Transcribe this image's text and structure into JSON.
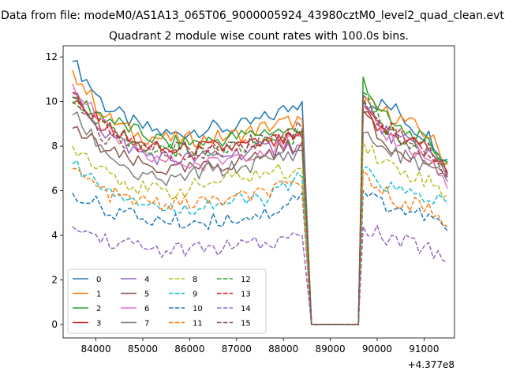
{
  "figure": {
    "suptitle": "Data from file: modeM0/AS1A13_065T06_9000005924_43980cztM0_level2_quad_clean.evt",
    "offset_text": "+4.377e8"
  },
  "chart_data": {
    "type": "line",
    "title": "Quadrant 2 module wise count rates with 100.0s bins.",
    "xlabel": "",
    "ylabel": "",
    "x_offset": 437700000,
    "xlim": [
      83300,
      91650
    ],
    "ylim": [
      -0.6,
      12.5
    ],
    "x_ticks": [
      84000,
      85000,
      86000,
      87000,
      88000,
      89000,
      90000,
      91000
    ],
    "x_tick_labels": [
      "84000",
      "85000",
      "86000",
      "87000",
      "88000",
      "89000",
      "90000",
      "91000"
    ],
    "y_ticks": [
      0,
      2,
      4,
      6,
      8,
      10,
      12
    ],
    "y_tick_labels": [
      "0",
      "2",
      "4",
      "6",
      "8",
      "10",
      "12"
    ],
    "grid": false,
    "legend_position": "lower-left",
    "legend_columns": 4,
    "segments": [
      {
        "x_start": 83500,
        "x_end": 88400
      },
      {
        "x_start": 88600,
        "x_end": 89600
      },
      {
        "x_start": 89700,
        "x_end": 91450
      }
    ],
    "series": [
      {
        "name": "0",
        "color": "#1f77b4",
        "dash": "solid",
        "a": [
          11.8,
          9.8,
          8.9,
          8.5,
          8.8,
          8.8,
          9.3,
          10.0
        ],
        "gap": 0,
        "b": [
          10.0,
          9.9,
          9.6,
          8.8,
          8.4,
          7.4
        ]
      },
      {
        "name": "1",
        "color": "#ff7f0e",
        "dash": "solid",
        "a": [
          11.4,
          9.3,
          8.5,
          8.3,
          8.3,
          8.5,
          8.9,
          9.2
        ],
        "gap": 0,
        "b": [
          10.0,
          9.6,
          9.3,
          8.9,
          8.4,
          7.2
        ]
      },
      {
        "name": "2",
        "color": "#2ca02c",
        "dash": "solid",
        "a": [
          10.2,
          9.3,
          8.6,
          8.1,
          8.2,
          8.4,
          8.7,
          8.6
        ],
        "gap": 0,
        "b": [
          11.1,
          9.5,
          8.8,
          8.5,
          8.0,
          7.3
        ]
      },
      {
        "name": "3",
        "color": "#d62728",
        "dash": "solid",
        "a": [
          9.9,
          8.9,
          8.0,
          7.8,
          7.9,
          8.0,
          8.1,
          8.4
        ],
        "gap": 0,
        "b": [
          9.5,
          8.7,
          8.4,
          8.2,
          7.9,
          6.7
        ]
      },
      {
        "name": "4",
        "color": "#9467bd",
        "dash": "solid",
        "a": [
          10.4,
          8.6,
          7.7,
          7.4,
          7.5,
          7.7,
          7.9,
          8.0
        ],
        "gap": 0,
        "b": [
          9.8,
          8.8,
          8.3,
          8.0,
          7.7,
          6.6
        ]
      },
      {
        "name": "5",
        "color": "#8c564b",
        "dash": "solid",
        "a": [
          8.8,
          7.8,
          7.2,
          6.9,
          7.0,
          7.3,
          7.7,
          8.2
        ],
        "gap": 0,
        "b": [
          9.6,
          8.2,
          7.9,
          7.6,
          7.2,
          6.6
        ]
      },
      {
        "name": "6",
        "color": "#e377c2",
        "dash": "solid",
        "a": [
          10.8,
          8.8,
          7.6,
          7.3,
          7.1,
          7.6,
          7.9,
          8.4
        ],
        "gap": 0,
        "b": [
          9.8,
          8.6,
          8.3,
          7.8,
          7.4,
          6.1
        ]
      },
      {
        "name": "7",
        "color": "#7f7f7f",
        "dash": "solid",
        "a": [
          9.4,
          7.8,
          6.6,
          6.4,
          6.9,
          7.0,
          7.4,
          7.8
        ],
        "gap": 0,
        "b": [
          8.6,
          8.0,
          7.6,
          7.4,
          7.0,
          6.4
        ]
      },
      {
        "name": "8",
        "color": "#bcbd22",
        "dash": "dashed",
        "a": [
          8.0,
          7.0,
          6.1,
          5.9,
          6.3,
          6.6,
          6.8,
          7.0
        ],
        "gap": 0,
        "b": [
          8.2,
          7.4,
          7.0,
          6.7,
          6.4,
          5.8
        ]
      },
      {
        "name": "9",
        "color": "#17becf",
        "dash": "dashed",
        "a": [
          7.2,
          6.2,
          5.6,
          5.1,
          5.4,
          5.5,
          5.7,
          6.6
        ],
        "gap": 0,
        "b": [
          7.0,
          6.4,
          6.0,
          5.8,
          5.7,
          5.4
        ]
      },
      {
        "name": "10",
        "color": "#1f77b4",
        "dash": "dashed",
        "a": [
          5.9,
          5.2,
          4.8,
          4.6,
          4.6,
          4.8,
          5.0,
          5.9
        ],
        "gap": 0,
        "b": [
          6.0,
          5.5,
          5.2,
          5.0,
          4.8,
          4.2
        ]
      },
      {
        "name": "11",
        "color": "#ff7f0e",
        "dash": "dashed",
        "a": [
          7.0,
          5.9,
          5.5,
          5.4,
          5.5,
          5.6,
          6.0,
          6.2
        ],
        "gap": 0,
        "b": [
          6.9,
          6.0,
          5.6,
          5.4,
          5.2,
          4.4
        ]
      },
      {
        "name": "12",
        "color": "#2ca02c",
        "dash": "dashed",
        "a": [
          10.0,
          8.7,
          8.1,
          7.8,
          7.8,
          7.9,
          8.3,
          8.5
        ],
        "gap": 0,
        "b": [
          10.4,
          9.0,
          8.4,
          8.2,
          7.8,
          7.3
        ]
      },
      {
        "name": "13",
        "color": "#d62728",
        "dash": "dashed",
        "a": [
          10.4,
          8.9,
          8.0,
          7.8,
          7.7,
          8.0,
          8.2,
          8.7
        ],
        "gap": 0,
        "b": [
          10.2,
          9.2,
          8.6,
          8.2,
          7.8,
          6.8
        ]
      },
      {
        "name": "14",
        "color": "#9467bd",
        "dash": "dashed",
        "a": [
          4.4,
          3.8,
          3.5,
          3.3,
          3.4,
          3.5,
          3.6,
          4.0
        ],
        "gap": 0,
        "b": [
          4.4,
          4.0,
          3.7,
          3.6,
          3.4,
          2.8
        ]
      },
      {
        "name": "15",
        "color": "#8c564b",
        "dash": "dashed",
        "a": [
          10.2,
          8.4,
          7.9,
          7.8,
          7.8,
          8.0,
          8.4,
          8.8
        ],
        "gap": 0,
        "b": [
          10.3,
          9.0,
          8.5,
          8.2,
          7.8,
          6.9
        ]
      }
    ]
  }
}
